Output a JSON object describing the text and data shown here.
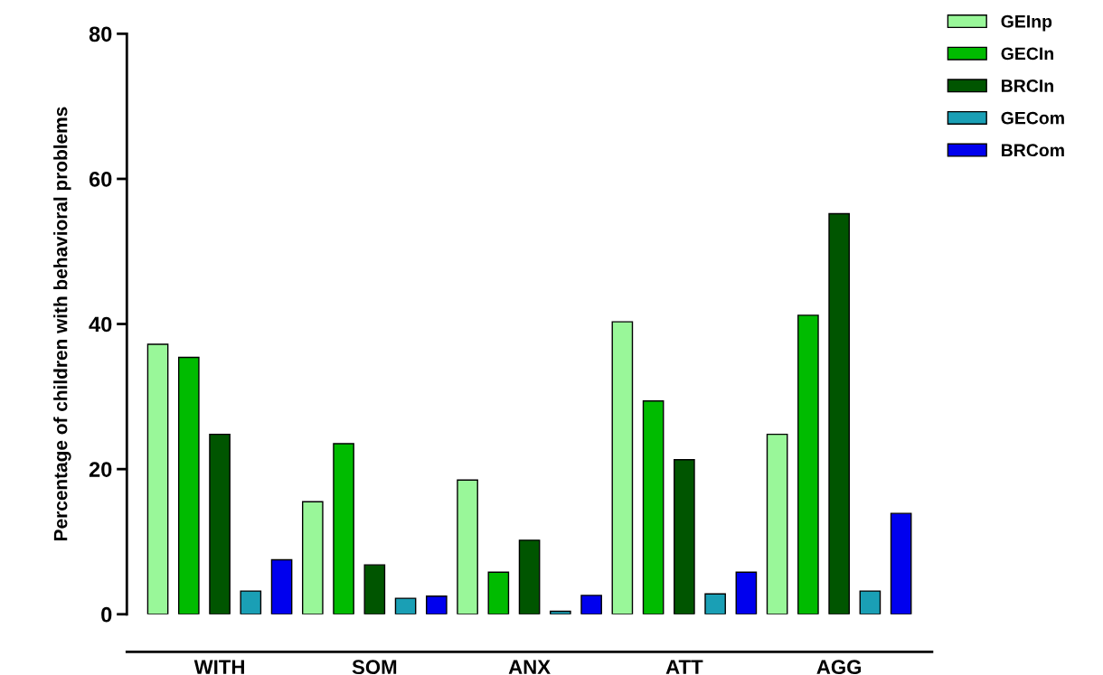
{
  "chart_data": {
    "type": "bar",
    "ylabel": "Percentage of children with behavioral problems",
    "categories": [
      "WITH",
      "SOM",
      "ANX",
      "ATT",
      "AGG"
    ],
    "series": [
      {
        "name": "GEInp",
        "color": "#99f799",
        "values": [
          37.2,
          15.5,
          18.5,
          40.3,
          24.8
        ]
      },
      {
        "name": "GECIn",
        "color": "#00bb00",
        "values": [
          35.4,
          23.5,
          5.8,
          29.4,
          41.2
        ]
      },
      {
        "name": "BRCIn",
        "color": "#005500",
        "values": [
          24.8,
          6.8,
          10.2,
          21.3,
          55.2
        ]
      },
      {
        "name": "GECom",
        "color": "#1a9fb5",
        "values": [
          3.2,
          2.2,
          0.4,
          2.8,
          3.2
        ]
      },
      {
        "name": "BRCom",
        "color": "#0000ee",
        "values": [
          7.5,
          2.5,
          2.6,
          5.8,
          13.9
        ]
      }
    ],
    "ylim": [
      0,
      80
    ],
    "yticks": [
      0,
      20,
      40,
      60,
      80
    ],
    "grid": false,
    "legend": "top right"
  }
}
